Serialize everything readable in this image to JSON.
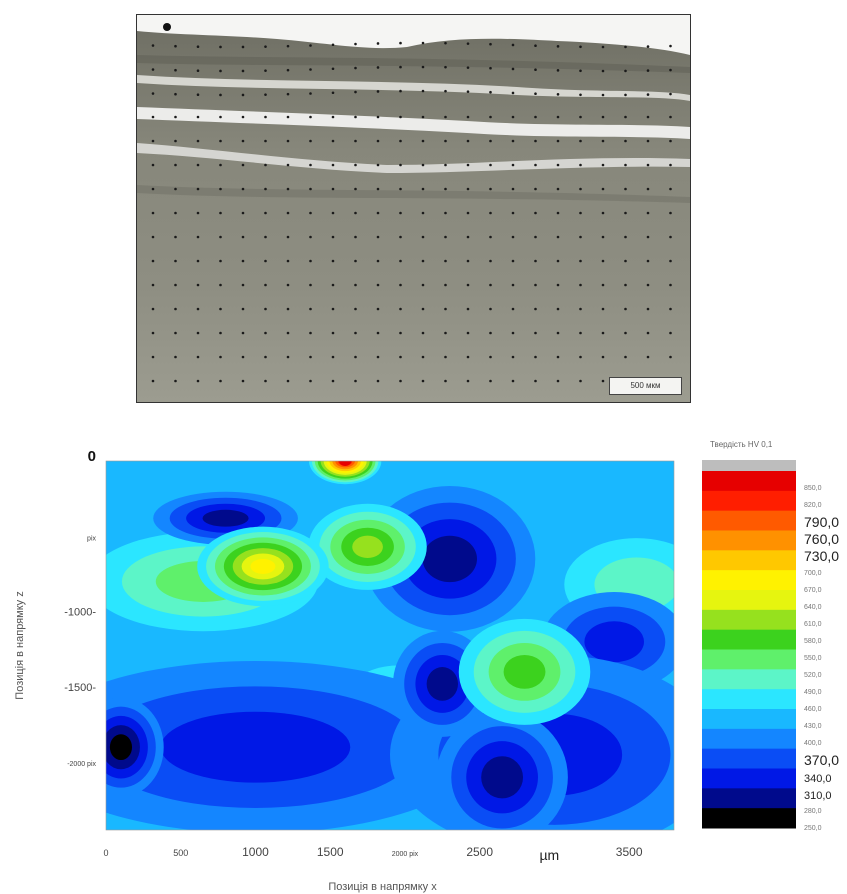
{
  "micrograph": {
    "scale_label": "500 мкм"
  },
  "chart_data": {
    "type": "heatmap",
    "title": "",
    "xlabel": "Позиція в напрямку х",
    "ylabel": "Позиція в напрямку z",
    "x_unit": "µm",
    "xlim": [
      0,
      3800
    ],
    "ylim": [
      -2450,
      0
    ],
    "x_ticks": [
      {
        "value": 0,
        "label": "0"
      },
      {
        "value": 500,
        "label": "500"
      },
      {
        "value": 1000,
        "label": "1000"
      },
      {
        "value": 1500,
        "label": "1500"
      },
      {
        "value": 2000,
        "label": "2000 pix"
      },
      {
        "value": 2500,
        "label": "2500"
      },
      {
        "value": 3500,
        "label": "3500"
      }
    ],
    "y_ticks": [
      {
        "value": 0,
        "label": "0"
      },
      {
        "value": -500,
        "label": "pix"
      },
      {
        "value": -1000,
        "label": "-1000-"
      },
      {
        "value": -1500,
        "label": "-1500-"
      },
      {
        "value": -2000,
        "label": "-2000 pix"
      }
    ],
    "hotspots": [
      {
        "x": 1600,
        "z": 0,
        "v": 860,
        "sx": 110,
        "sz": 70
      },
      {
        "x": 1050,
        "z": -700,
        "v": 700,
        "sx": 200,
        "sz": 120
      },
      {
        "x": 1750,
        "z": -570,
        "v": 610,
        "sx": 180,
        "sz": 130
      },
      {
        "x": 2800,
        "z": -1400,
        "v": 570,
        "sx": 200,
        "sz": 160
      },
      {
        "x": 650,
        "z": -800,
        "v": 540,
        "sx": 350,
        "sz": 150
      },
      {
        "x": 3550,
        "z": -820,
        "v": 510,
        "sx": 220,
        "sz": 140
      },
      {
        "x": 1950,
        "z": -1600,
        "v": 490,
        "sx": 160,
        "sz": 110
      },
      {
        "x": 800,
        "z": -380,
        "v": 300,
        "sx": 220,
        "sz": 80
      },
      {
        "x": 2250,
        "z": -1480,
        "v": 300,
        "sx": 150,
        "sz": 160
      },
      {
        "x": 2300,
        "z": -650,
        "v": 310,
        "sx": 260,
        "sz": 220
      },
      {
        "x": 100,
        "z": -1900,
        "v": 280,
        "sx": 130,
        "sz": 150
      },
      {
        "x": 1000,
        "z": -1900,
        "v": 320,
        "sx": 700,
        "sz": 260
      },
      {
        "x": 3000,
        "z": -1950,
        "v": 320,
        "sx": 500,
        "sz": 300
      },
      {
        "x": 3400,
        "z": -1200,
        "v": 330,
        "sx": 220,
        "sz": 150
      },
      {
        "x": 2650,
        "z": -2100,
        "v": 300,
        "sx": 200,
        "sz": 200
      }
    ],
    "background_value": 430,
    "colorbar": {
      "title": "Твердість HV 0,1",
      "range": [
        250,
        880
      ],
      "labels": [
        {
          "value": 850,
          "text": "850,0",
          "size": "small"
        },
        {
          "value": 820,
          "text": "820,0",
          "size": "small"
        },
        {
          "value": 790,
          "text": "790,0",
          "size": "large"
        },
        {
          "value": 760,
          "text": "760,0",
          "size": "large"
        },
        {
          "value": 730,
          "text": "730,0",
          "size": "large"
        },
        {
          "value": 700,
          "text": "700,0",
          "size": "small"
        },
        {
          "value": 670,
          "text": "670,0",
          "size": "small"
        },
        {
          "value": 640,
          "text": "640,0",
          "size": "small"
        },
        {
          "value": 610,
          "text": "610,0",
          "size": "small"
        },
        {
          "value": 580,
          "text": "580,0",
          "size": "small"
        },
        {
          "value": 550,
          "text": "550,0",
          "size": "small"
        },
        {
          "value": 520,
          "text": "520,0",
          "size": "small"
        },
        {
          "value": 490,
          "text": "490,0",
          "size": "small"
        },
        {
          "value": 460,
          "text": "460,0",
          "size": "small"
        },
        {
          "value": 430,
          "text": "430,0",
          "size": "small"
        },
        {
          "value": 400,
          "text": "400,0",
          "size": "small"
        },
        {
          "value": 370,
          "text": "370,0",
          "size": "large"
        },
        {
          "value": 340,
          "text": "340,0",
          "size": "medium"
        },
        {
          "value": 310,
          "text": "310,0",
          "size": "medium"
        },
        {
          "value": 280,
          "text": "280,0",
          "size": "small"
        },
        {
          "value": 250,
          "text": "250,0",
          "size": "small"
        }
      ]
    }
  },
  "colors": {
    "scale": [
      "#000000",
      "#000a8c",
      "#0018e6",
      "#0a4df5",
      "#1486ff",
      "#19b8ff",
      "#2be6ff",
      "#5cf5c8",
      "#5ff06b",
      "#3cd21e",
      "#96e11e",
      "#e6f50f",
      "#fff200",
      "#ffc800",
      "#ff9100",
      "#ff5a00",
      "#ff1e00",
      "#e60000"
    ],
    "overflow": "#bdbdbd"
  }
}
